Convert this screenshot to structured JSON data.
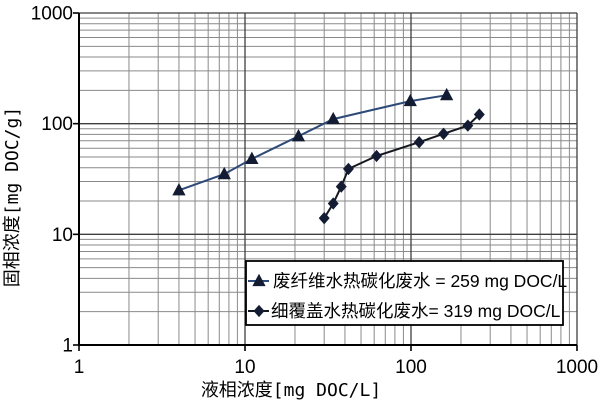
{
  "colors": {
    "background": "#ffffff",
    "axis": "#000000",
    "grid_major": "#3f3f3f",
    "grid_minor": "#8a8a8a",
    "series1_line": "#2e4a78",
    "series1_marker": "#131c33",
    "series2_line": "#15181f",
    "series2_marker": "#131c33",
    "legend_border": "#000000",
    "legend_fill": "#ffffff"
  },
  "chart_data": {
    "type": "line",
    "x_scale": "log",
    "y_scale": "log",
    "title": "",
    "xlabel": "液相浓度[mg DOC/L]",
    "ylabel": "固相浓度[mg DOC/g]",
    "xlim": [
      1,
      1000
    ],
    "ylim": [
      1,
      1000
    ],
    "x_ticks": [
      "1",
      "10",
      "100",
      "1000"
    ],
    "y_ticks": [
      "1",
      "10",
      "100",
      "1000"
    ],
    "grid": {
      "major": true,
      "minor": true
    },
    "legend": {
      "position": "inside-bottom-right",
      "border": true
    },
    "series": [
      {
        "name": "废纤维水热碳化废水 = 259 mg DOC/L",
        "marker": "triangle",
        "line_color": "#2e4a78",
        "marker_color": "#131c33",
        "points": [
          [
            4,
            25
          ],
          [
            7.5,
            35
          ],
          [
            11,
            48
          ],
          [
            21,
            77
          ],
          [
            34,
            110
          ],
          [
            99,
            160
          ],
          [
            164,
            181
          ]
        ]
      },
      {
        "name": "细覆盖水热碳化废水= 319 mg DOC/L",
        "marker": "diamond",
        "line_color": "#15181f",
        "marker_color": "#131c33",
        "points": [
          [
            30,
            14
          ],
          [
            34,
            19
          ],
          [
            38,
            27
          ],
          [
            42,
            39
          ],
          [
            62,
            51
          ],
          [
            112,
            68
          ],
          [
            157,
            81
          ],
          [
            220,
            96
          ],
          [
            258,
            121
          ]
        ]
      }
    ]
  }
}
